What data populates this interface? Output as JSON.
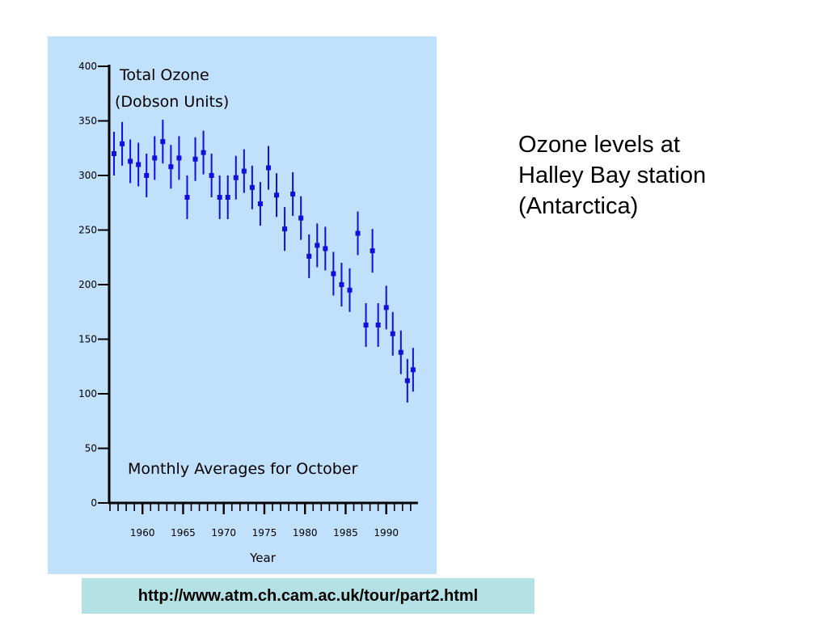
{
  "caption": {
    "lines": [
      "Ozone levels at",
      "Halley Bay station",
      "(Antarctica)"
    ]
  },
  "source": {
    "url": "http://www.atm.ch.cam.ac.uk/tour/part2.html"
  },
  "colors": {
    "panel_background": "#c0e0fb",
    "data_marks": "#1010d8",
    "axis": "#000000",
    "url_background": "#b4e2e4"
  },
  "chart_data": {
    "type": "scatter",
    "title": "Total Ozone\n(Dobson Units)",
    "annotation": "Monthly Averages for October",
    "xlabel": "Year",
    "ylabel": "",
    "xlim": [
      1956,
      1993.5
    ],
    "ylim": [
      0,
      400
    ],
    "x_ticks": [
      1960,
      1965,
      1970,
      1975,
      1980,
      1985,
      1990
    ],
    "y_ticks": [
      0,
      50,
      100,
      150,
      200,
      250,
      300,
      350,
      400
    ],
    "error_bars": true,
    "grid": false,
    "legend": "none",
    "points": [
      {
        "x": 1956.5,
        "y": 320,
        "err": 20
      },
      {
        "x": 1957.5,
        "y": 329,
        "err": 20
      },
      {
        "x": 1958.5,
        "y": 313,
        "err": 20
      },
      {
        "x": 1959.5,
        "y": 310,
        "err": 20
      },
      {
        "x": 1960.5,
        "y": 300,
        "err": 20
      },
      {
        "x": 1961.5,
        "y": 316,
        "err": 20
      },
      {
        "x": 1962.5,
        "y": 331,
        "err": 20
      },
      {
        "x": 1963.5,
        "y": 308,
        "err": 20
      },
      {
        "x": 1964.5,
        "y": 316,
        "err": 20
      },
      {
        "x": 1965.5,
        "y": 280,
        "err": 20
      },
      {
        "x": 1966.5,
        "y": 315,
        "err": 20
      },
      {
        "x": 1967.5,
        "y": 321,
        "err": 20
      },
      {
        "x": 1968.5,
        "y": 300,
        "err": 20
      },
      {
        "x": 1969.5,
        "y": 280,
        "err": 20
      },
      {
        "x": 1970.5,
        "y": 280,
        "err": 20
      },
      {
        "x": 1971.5,
        "y": 298,
        "err": 20
      },
      {
        "x": 1972.5,
        "y": 304,
        "err": 20
      },
      {
        "x": 1973.5,
        "y": 289,
        "err": 20
      },
      {
        "x": 1974.5,
        "y": 274,
        "err": 20
      },
      {
        "x": 1975.5,
        "y": 307,
        "err": 20
      },
      {
        "x": 1976.5,
        "y": 282,
        "err": 20
      },
      {
        "x": 1977.5,
        "y": 251,
        "err": 20
      },
      {
        "x": 1978.5,
        "y": 283,
        "err": 20
      },
      {
        "x": 1979.5,
        "y": 261,
        "err": 20
      },
      {
        "x": 1980.5,
        "y": 226,
        "err": 20
      },
      {
        "x": 1981.5,
        "y": 236,
        "err": 20
      },
      {
        "x": 1982.5,
        "y": 233,
        "err": 20
      },
      {
        "x": 1983.5,
        "y": 210,
        "err": 20
      },
      {
        "x": 1984.5,
        "y": 200,
        "err": 20
      },
      {
        "x": 1985.5,
        "y": 195,
        "err": 20
      },
      {
        "x": 1986.5,
        "y": 247,
        "err": 20
      },
      {
        "x": 1987.5,
        "y": 163,
        "err": 20
      },
      {
        "x": 1989.0,
        "y": 163,
        "err": 20
      },
      {
        "x": 1988.3,
        "y": 231,
        "err": 20
      },
      {
        "x": 1990.0,
        "y": 179,
        "err": 20
      },
      {
        "x": 1990.8,
        "y": 155,
        "err": 20
      },
      {
        "x": 1991.8,
        "y": 138,
        "err": 20
      },
      {
        "x": 1992.6,
        "y": 112,
        "err": 20
      },
      {
        "x": 1993.3,
        "y": 122,
        "err": 20
      }
    ]
  }
}
